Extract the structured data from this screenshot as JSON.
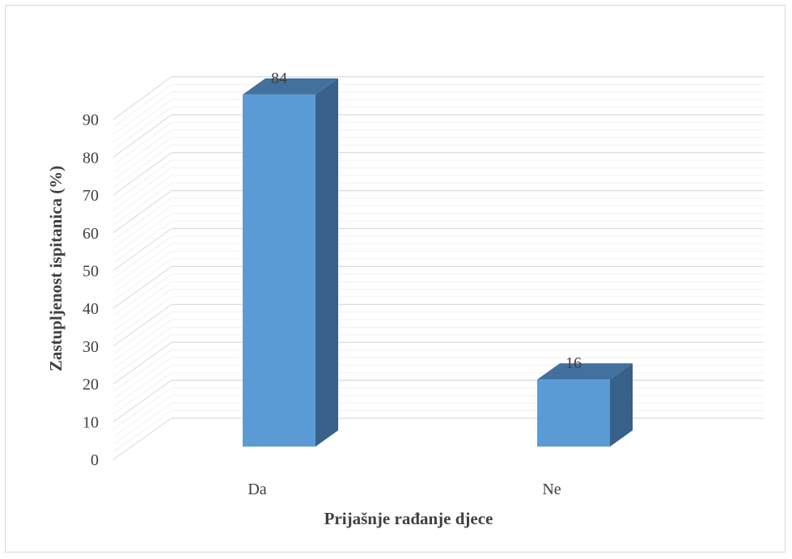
{
  "chart_data": {
    "type": "bar",
    "three_d": true,
    "categories": [
      "Da",
      "Ne"
    ],
    "values": [
      84,
      16
    ],
    "data_labels": [
      "84",
      "16"
    ],
    "title": "",
    "xlabel": "Prijašnje rađanje djece",
    "ylabel": "Zastupljenost ispitanica (%)",
    "ylim": [
      0,
      90
    ],
    "yticks": [
      "0",
      "10",
      "20",
      "30",
      "40",
      "50",
      "60",
      "70",
      "80",
      "90"
    ],
    "grid": true,
    "legend": "none",
    "colors": {
      "bar_front": "#5b9bd5",
      "bar_side": "#376189",
      "bar_top": "#41719c",
      "grid": "#d9d9d9",
      "text": "#404040"
    }
  }
}
